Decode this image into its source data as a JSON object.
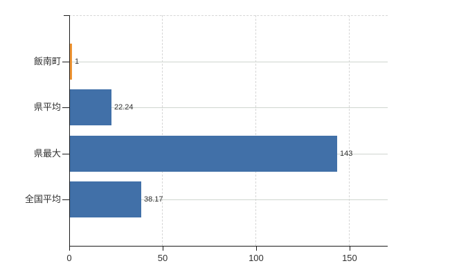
{
  "chart_data": {
    "type": "bar",
    "orientation": "horizontal",
    "title": "",
    "xlabel": "",
    "ylabel": "",
    "categories": [
      "飯南町",
      "県平均",
      "県最大",
      "全国平均"
    ],
    "values": [
      1,
      22.24,
      143,
      38.17
    ],
    "value_labels": [
      "1",
      "22.24",
      "143",
      "38.17"
    ],
    "bar_colors": [
      "#EE9434",
      "#4170A8",
      "#4170A8",
      "#4170A8"
    ],
    "xlim": [
      0,
      170.4
    ],
    "x_ticks": [
      0,
      50,
      100,
      150
    ],
    "x_tick_labels": [
      "0",
      "50",
      "100",
      "150"
    ],
    "grid": {
      "vertical": "dashed at x ticks",
      "horizontal": "solid line at each category center",
      "top_border": "dashed"
    },
    "legend": "none"
  },
  "colors": {
    "bar_blue": "#4170A8",
    "bar_orange": "#EE9434",
    "axis": "#1a1a1a",
    "dashed_gridline": "#d6d6d6",
    "category_gridline": "#cfd5cf",
    "text": "#2f2f2f",
    "background": "#ffffff"
  }
}
